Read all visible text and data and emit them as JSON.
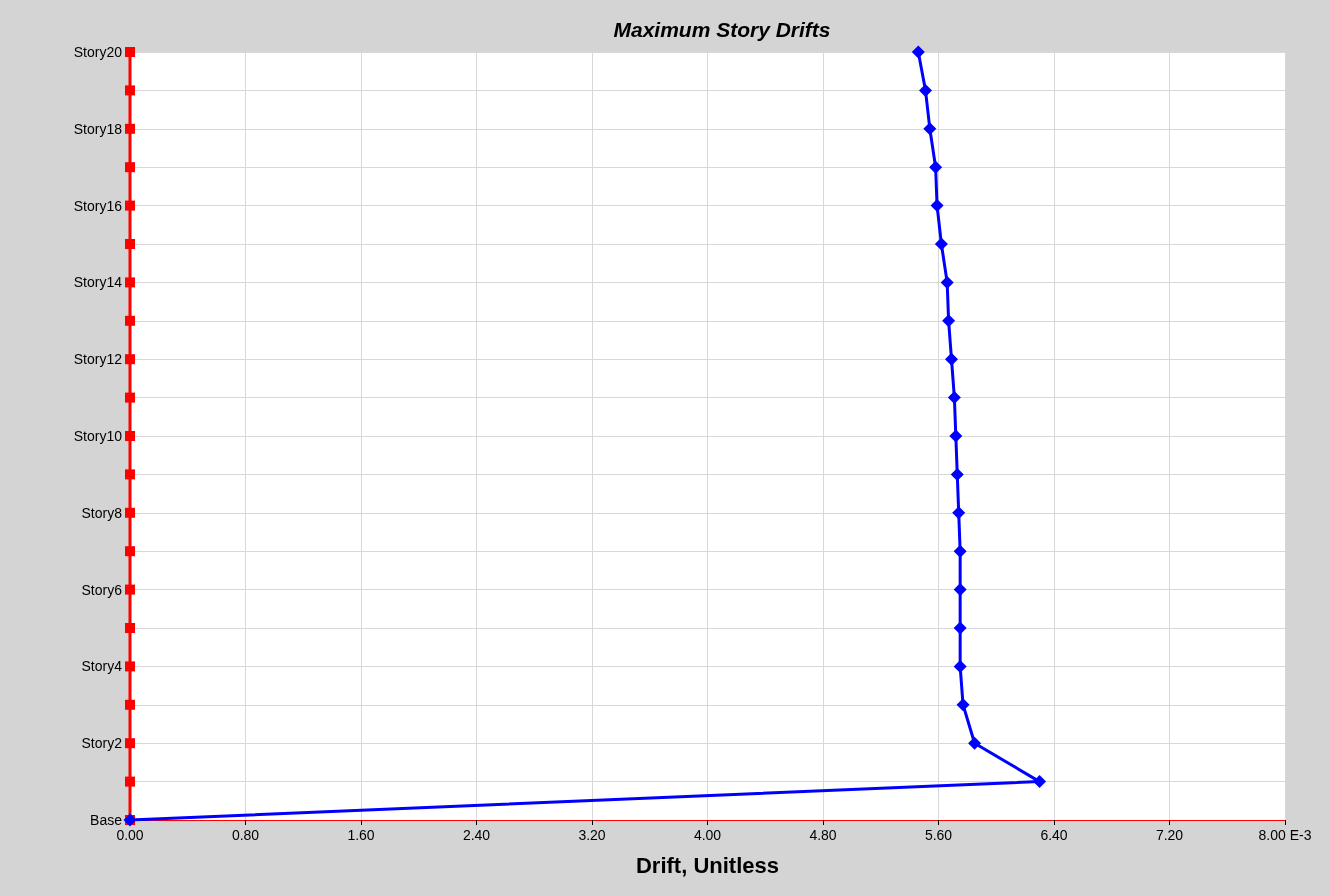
{
  "chart_data": {
    "type": "line",
    "orientation": "horizontal",
    "title": "Maximum Story Drifts",
    "xlabel": "Drift, Unitless",
    "categories": [
      "Story20",
      null,
      "Story18",
      null,
      "Story16",
      null,
      "Story14",
      null,
      "Story12",
      null,
      "Story10",
      null,
      "Story8",
      null,
      "Story6",
      null,
      "Story4",
      null,
      "Story2",
      null,
      "Base"
    ],
    "series": [
      {
        "color": "#ff0000",
        "marker": "square",
        "values": [
          0,
          0,
          0,
          0,
          0,
          0,
          0,
          0,
          0,
          0,
          0,
          0,
          0,
          0,
          0,
          0,
          0,
          0,
          0,
          0,
          0
        ]
      },
      {
        "color": "#0000ff",
        "marker": "diamond",
        "values": [
          5.46,
          5.51,
          5.54,
          5.58,
          5.59,
          5.62,
          5.66,
          5.67,
          5.69,
          5.71,
          5.72,
          5.73,
          5.74,
          5.75,
          5.75,
          5.75,
          5.75,
          5.77,
          5.85,
          6.3,
          0
        ]
      }
    ],
    "xlim": [
      0,
      8
    ],
    "xticks": [
      {
        "value": 0,
        "label": "0.00"
      },
      {
        "value": 0.8,
        "label": "0.80"
      },
      {
        "value": 1.6,
        "label": "1.60"
      },
      {
        "value": 2.4,
        "label": "2.40"
      },
      {
        "value": 3.2,
        "label": "3.20"
      },
      {
        "value": 4,
        "label": "4.00"
      },
      {
        "value": 4.8,
        "label": "4.80"
      },
      {
        "value": 5.6,
        "label": "5.60"
      },
      {
        "value": 6.4,
        "label": "6.40"
      },
      {
        "value": 7.2,
        "label": "7.20"
      },
      {
        "value": 8,
        "label": "8.00 E-3"
      }
    ],
    "grid": true,
    "line_style": "solid"
  }
}
